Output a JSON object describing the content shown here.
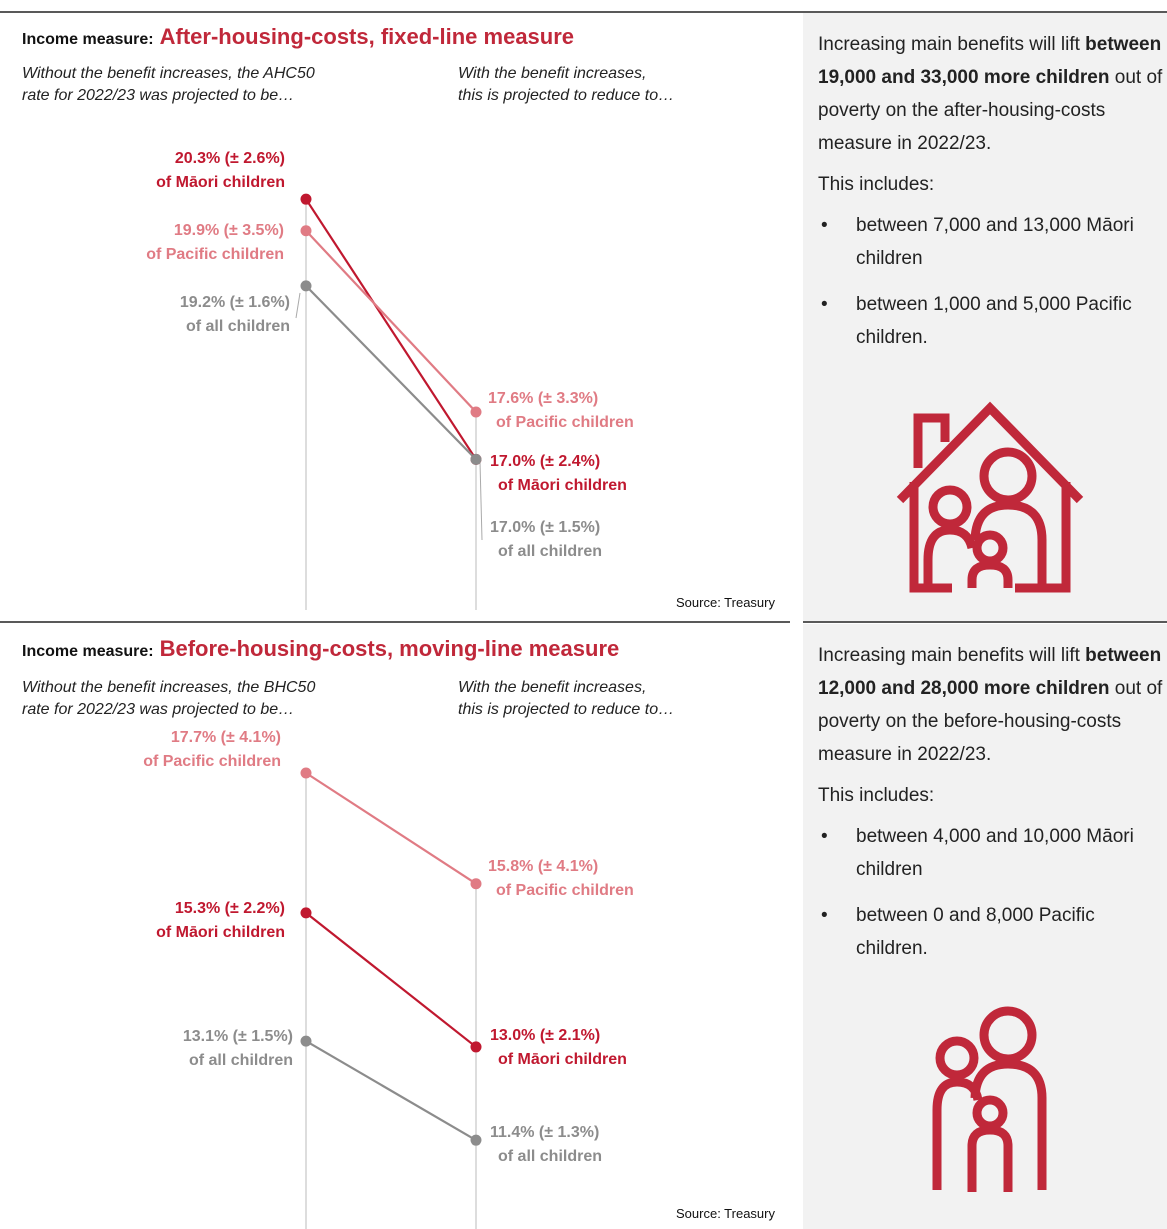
{
  "chart_data": [
    {
      "type": "slope",
      "label": "Income measure:",
      "title": "After-housing-costs, fixed-line measure",
      "categories": [
        [
          "Without the benefit increases, the AHC50",
          "rate for 2022/23 was projected to be…"
        ],
        [
          "With the benefit increases,",
          "this is projected to reduce to…"
        ]
      ],
      "ylim": [
        15,
        21
      ],
      "series": [
        {
          "name": "of Māori children",
          "color": "#c0182f",
          "values": [
            20.3,
            17.0
          ],
          "value_labels": [
            "20.3% (± 2.6%)",
            "17.0% (± 2.4%)"
          ]
        },
        {
          "name": "of Pacific children",
          "color": "#e07b84",
          "values": [
            19.9,
            17.6
          ],
          "value_labels": [
            "19.9% (± 3.5%)",
            "17.6% (± 3.3%)"
          ]
        },
        {
          "name": "of all children",
          "color": "#8c8c8c",
          "values": [
            19.2,
            17.0
          ],
          "value_labels": [
            "19.2% (± 1.6%)",
            "17.0% (± 1.5%)"
          ]
        }
      ],
      "source": "Source: Treasury"
    },
    {
      "type": "slope",
      "label": "Income measure:",
      "title": "Before-housing-costs, moving-line measure",
      "categories": [
        [
          "Without the benefit increases, the BHC50",
          "rate for 2022/23 was projected to be…"
        ],
        [
          "With the benefit increases,",
          "this is projected to reduce to…"
        ]
      ],
      "ylim": [
        11,
        18
      ],
      "series": [
        {
          "name": "of Pacific children",
          "color": "#e07b84",
          "values": [
            17.7,
            15.8
          ],
          "value_labels": [
            "17.7% (± 4.1%)",
            "15.8% (± 4.1%)"
          ]
        },
        {
          "name": "of Māori children",
          "color": "#c0182f",
          "values": [
            15.3,
            13.0
          ],
          "value_labels": [
            "15.3% (± 2.2%)",
            "13.0% (± 2.1%)"
          ]
        },
        {
          "name": "of all children",
          "color": "#8c8c8c",
          "values": [
            13.1,
            11.4
          ],
          "value_labels": [
            "13.1% (± 1.5%)",
            "11.4% (± 1.3%)"
          ]
        }
      ],
      "source": "Source: Treasury"
    }
  ],
  "sidebars": [
    {
      "intro": "Increasing main benefits will lift",
      "highlight": "between 19,000 and 33,000 more children",
      "outro": "out of poverty on the after-housing-costs measure in 2022/23.",
      "includes": "This includes:",
      "bullets": [
        "between 7,000 and 13,000 Māori children",
        "between 1,000 and 5,000 Pacific children."
      ]
    },
    {
      "intro": "Increasing main benefits will lift",
      "highlight": "between 12,000 and 28,000 more children",
      "outro": "out of poverty on the before-housing-costs measure in 2022/23.",
      "includes": "This includes:",
      "bullets": [
        "between 4,000 and 10,000 Māori children",
        "between 0 and 8,000 Pacific children."
      ]
    }
  ]
}
